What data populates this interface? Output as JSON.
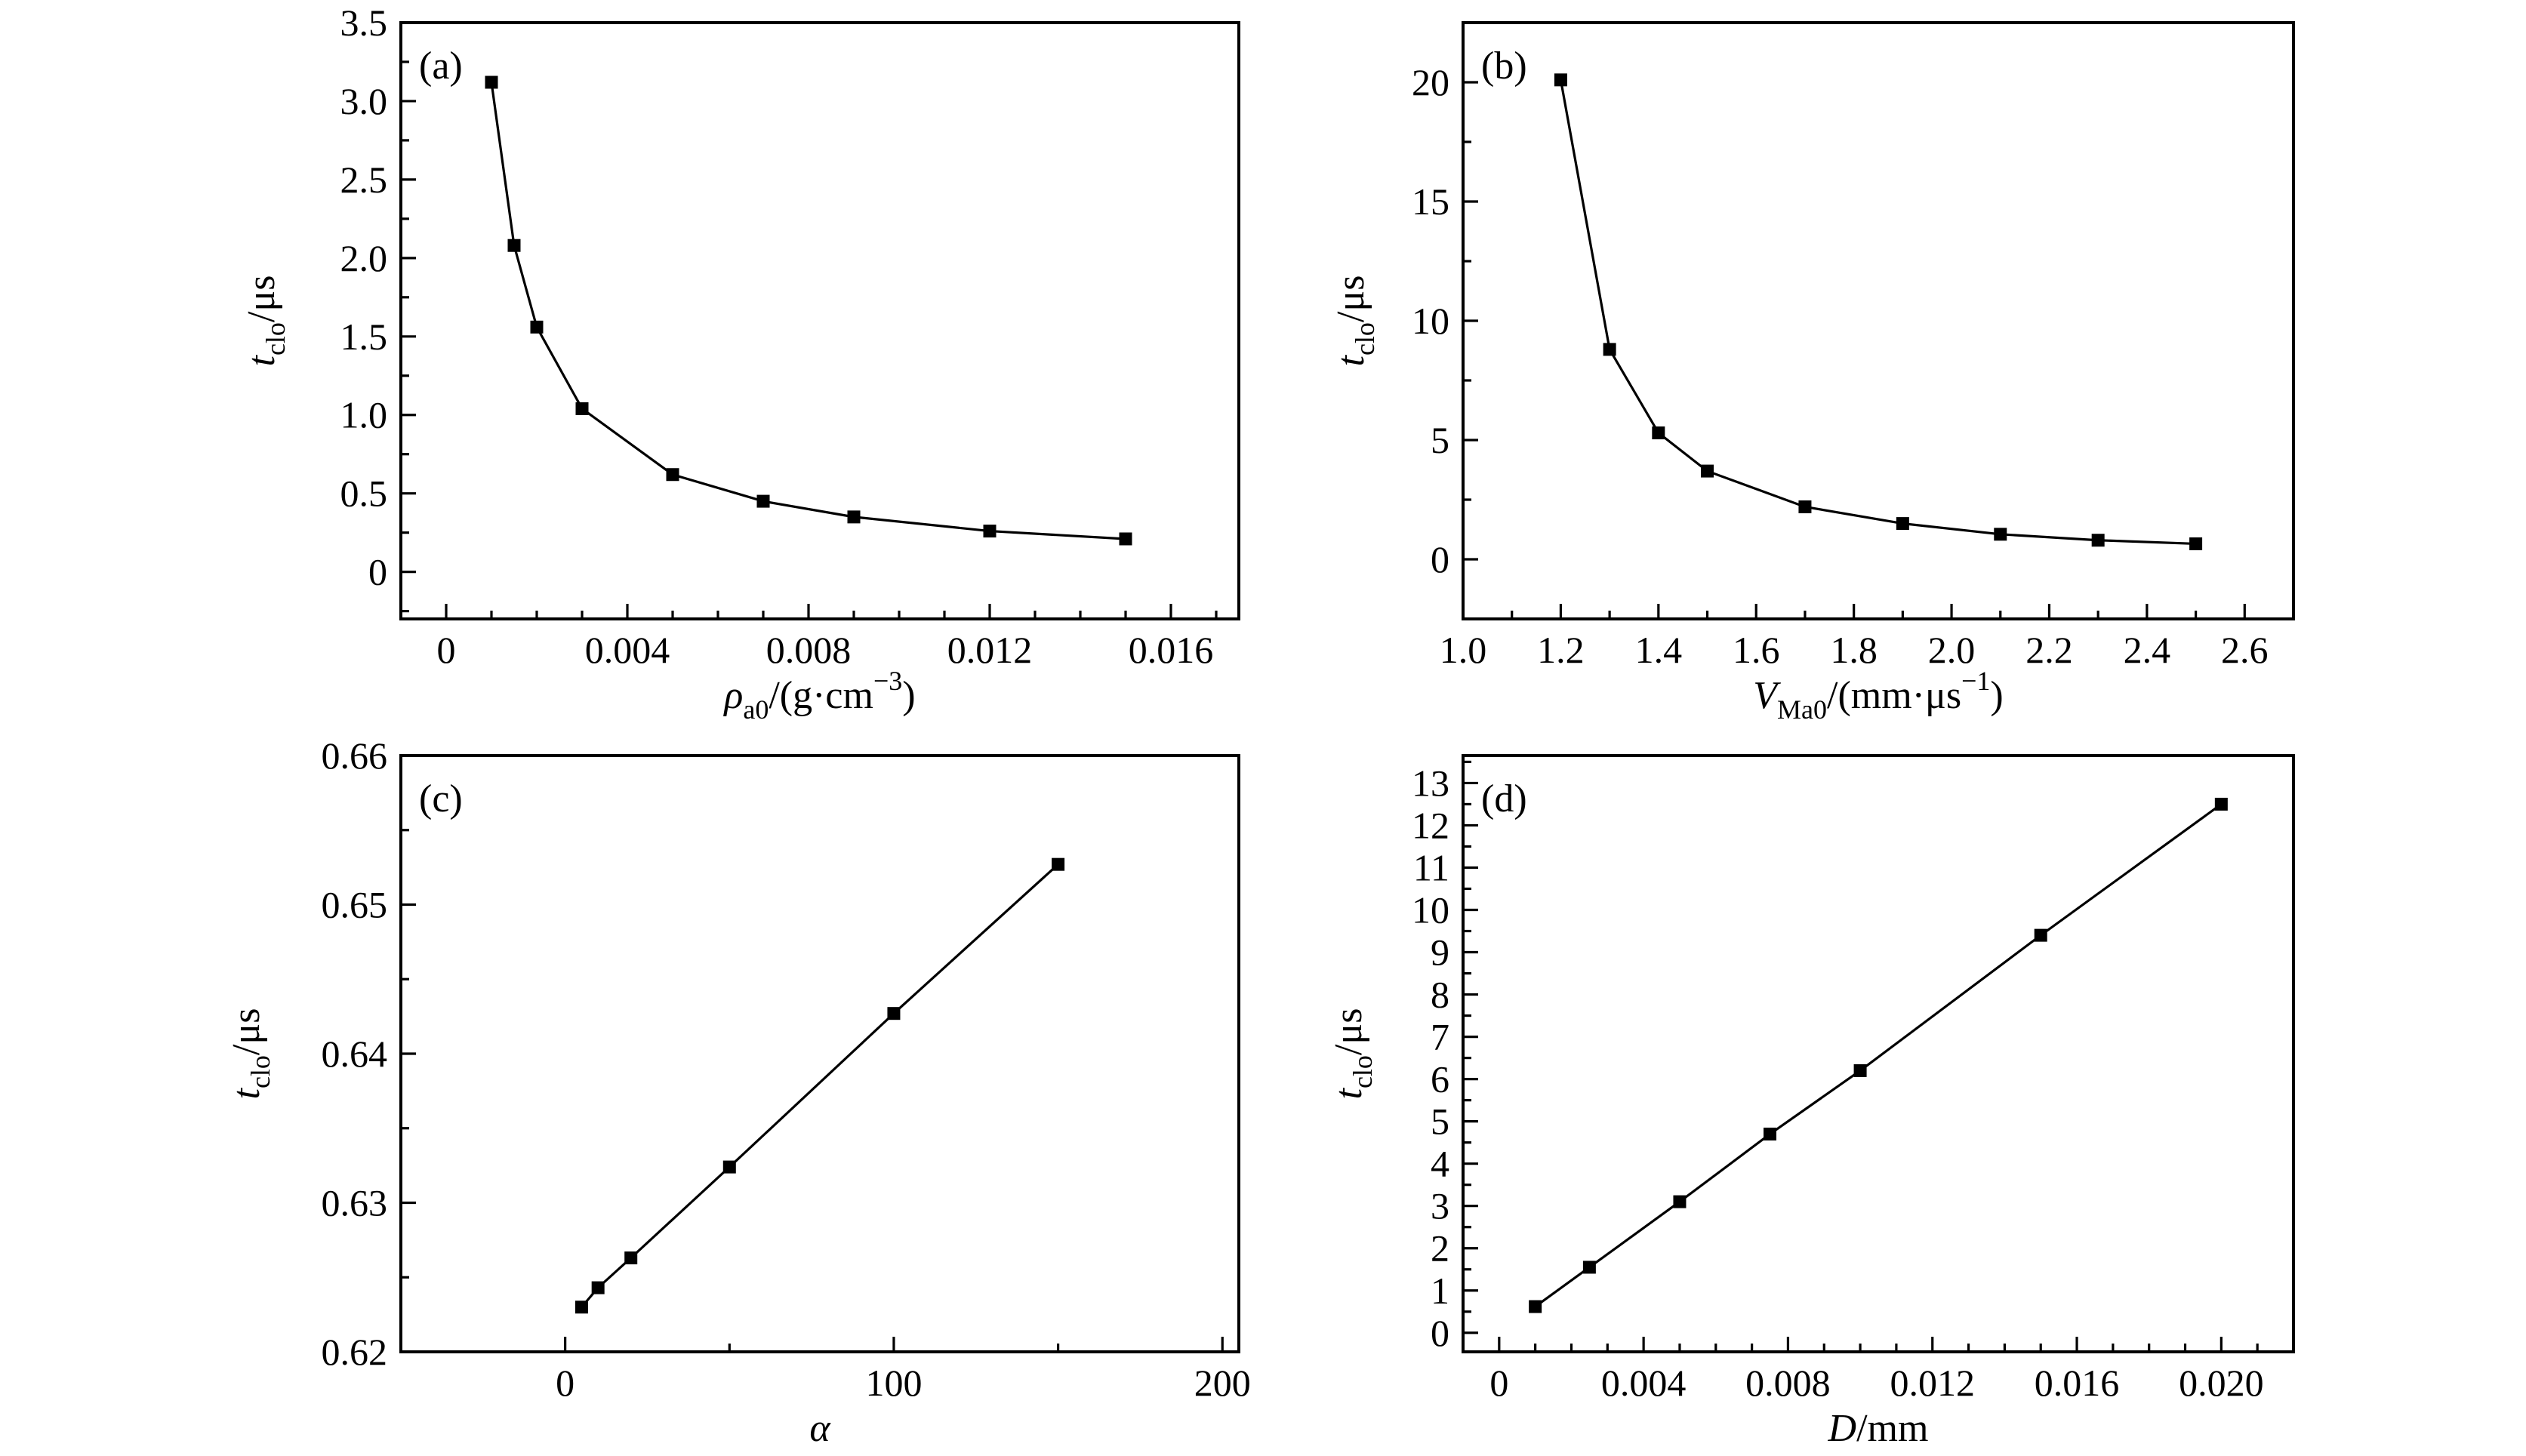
{
  "figure": {
    "background_color": "#ffffff",
    "ink_color": "#000000",
    "marker": "filled-square",
    "description": "Four-panel line figure of closure time t_clo versus four parameters"
  },
  "chart_data": [
    {
      "id": "a",
      "panel_label": "(a)",
      "type": "line",
      "xlabel_parts": [
        {
          "t": "ρ",
          "style": "italic"
        },
        {
          "t": "a0",
          "style": "sub"
        },
        {
          "t": "/(g·cm",
          "style": "normal"
        },
        {
          "t": "−3",
          "style": "sup"
        },
        {
          "t": ")",
          "style": "normal"
        }
      ],
      "ylabel_parts": [
        {
          "t": "t",
          "style": "italic"
        },
        {
          "t": "clo",
          "style": "sub"
        },
        {
          "t": "/μs",
          "style": "normal"
        }
      ],
      "xlim": [
        -0.001,
        0.0175
      ],
      "ylim": [
        -0.3,
        3.5
      ],
      "xticks": [
        {
          "v": 0,
          "l": "0"
        },
        {
          "v": 0.004,
          "l": "0.004"
        },
        {
          "v": 0.008,
          "l": "0.008"
        },
        {
          "v": 0.012,
          "l": "0.012"
        },
        {
          "v": 0.016,
          "l": "0.016"
        }
      ],
      "xminor": [
        0.001,
        0.002,
        0.003,
        0.005,
        0.006,
        0.007,
        0.009,
        0.01,
        0.011,
        0.013,
        0.014,
        0.015,
        0.017
      ],
      "yticks": [
        {
          "v": 0,
          "l": "0"
        },
        {
          "v": 0.5,
          "l": "0.5"
        },
        {
          "v": 1.0,
          "l": "1.0"
        },
        {
          "v": 1.5,
          "l": "1.5"
        },
        {
          "v": 2.0,
          "l": "2.0"
        },
        {
          "v": 2.5,
          "l": "2.5"
        },
        {
          "v": 3.0,
          "l": "3.0"
        },
        {
          "v": 3.5,
          "l": "3.5"
        }
      ],
      "yminor": [
        -0.25,
        0.25,
        0.75,
        1.25,
        1.75,
        2.25,
        2.75,
        3.25
      ],
      "x": [
        0.001,
        0.0015,
        0.002,
        0.003,
        0.005,
        0.007,
        0.009,
        0.012,
        0.015
      ],
      "y": [
        3.12,
        2.08,
        1.56,
        1.04,
        0.62,
        0.45,
        0.35,
        0.26,
        0.21
      ]
    },
    {
      "id": "b",
      "panel_label": "(b)",
      "type": "line",
      "xlabel_parts": [
        {
          "t": "V",
          "style": "italic"
        },
        {
          "t": "Ma0",
          "style": "sub"
        },
        {
          "t": "/(mm·μs",
          "style": "normal"
        },
        {
          "t": "−1",
          "style": "sup"
        },
        {
          "t": ")",
          "style": "normal"
        }
      ],
      "ylabel_parts": [
        {
          "t": "t",
          "style": "italic"
        },
        {
          "t": "clo",
          "style": "sub"
        },
        {
          "t": "/μs",
          "style": "normal"
        }
      ],
      "xlim": [
        1.0,
        2.7
      ],
      "ylim": [
        -2.5,
        22.5
      ],
      "xticks": [
        {
          "v": 1.0,
          "l": "1.0"
        },
        {
          "v": 1.2,
          "l": "1.2"
        },
        {
          "v": 1.4,
          "l": "1.4"
        },
        {
          "v": 1.6,
          "l": "1.6"
        },
        {
          "v": 1.8,
          "l": "1.8"
        },
        {
          "v": 2.0,
          "l": "2.0"
        },
        {
          "v": 2.2,
          "l": "2.2"
        },
        {
          "v": 2.4,
          "l": "2.4"
        },
        {
          "v": 2.6,
          "l": "2.6"
        }
      ],
      "xminor": [
        1.1,
        1.3,
        1.5,
        1.7,
        1.9,
        2.1,
        2.3,
        2.5
      ],
      "yticks": [
        {
          "v": 0,
          "l": "0"
        },
        {
          "v": 5,
          "l": "5"
        },
        {
          "v": 10,
          "l": "10"
        },
        {
          "v": 15,
          "l": "15"
        },
        {
          "v": 20,
          "l": "20"
        }
      ],
      "yminor": [
        2.5,
        7.5,
        12.5,
        17.5
      ],
      "x": [
        1.2,
        1.3,
        1.4,
        1.5,
        1.7,
        1.9,
        2.1,
        2.3,
        2.5
      ],
      "y": [
        20.1,
        8.8,
        5.3,
        3.7,
        2.2,
        1.5,
        1.05,
        0.8,
        0.65
      ]
    },
    {
      "id": "c",
      "panel_label": "(c)",
      "type": "line",
      "xlabel_parts": [
        {
          "t": "α",
          "style": "italic"
        }
      ],
      "ylabel_parts": [
        {
          "t": "t",
          "style": "italic"
        },
        {
          "t": "clo",
          "style": "sub"
        },
        {
          "t": "/μs",
          "style": "normal"
        }
      ],
      "xlim": [
        -50,
        205
      ],
      "ylim": [
        0.62,
        0.66
      ],
      "xticks": [
        {
          "v": 0,
          "l": "0"
        },
        {
          "v": 100,
          "l": "100"
        },
        {
          "v": 200,
          "l": "200"
        }
      ],
      "xminor": [
        50,
        150
      ],
      "yticks": [
        {
          "v": 0.62,
          "l": "0.62"
        },
        {
          "v": 0.63,
          "l": "0.63"
        },
        {
          "v": 0.64,
          "l": "0.64"
        },
        {
          "v": 0.65,
          "l": "0.65"
        },
        {
          "v": 0.66,
          "l": "0.66"
        }
      ],
      "yminor": [
        0.625,
        0.635,
        0.645,
        0.655
      ],
      "x": [
        5,
        10,
        20,
        50,
        100,
        150
      ],
      "y": [
        0.623,
        0.6243,
        0.6263,
        0.6324,
        0.6427,
        0.6527
      ]
    },
    {
      "id": "d",
      "panel_label": "(d)",
      "type": "line",
      "xlabel_parts": [
        {
          "t": "D",
          "style": "italic"
        },
        {
          "t": "/mm",
          "style": "normal"
        }
      ],
      "ylabel_parts": [
        {
          "t": "t",
          "style": "italic"
        },
        {
          "t": "clo",
          "style": "sub"
        },
        {
          "t": "/μs",
          "style": "normal"
        }
      ],
      "xlim": [
        -0.001,
        0.022
      ],
      "ylim": [
        -0.45,
        13.65
      ],
      "xticks": [
        {
          "v": 0,
          "l": "0"
        },
        {
          "v": 0.004,
          "l": "0.004"
        },
        {
          "v": 0.008,
          "l": "0.008"
        },
        {
          "v": 0.012,
          "l": "0.012"
        },
        {
          "v": 0.016,
          "l": "0.016"
        },
        {
          "v": 0.02,
          "l": "0.020"
        }
      ],
      "xminor": [
        0.001,
        0.002,
        0.003,
        0.005,
        0.006,
        0.007,
        0.009,
        0.01,
        0.011,
        0.013,
        0.014,
        0.015,
        0.017,
        0.018,
        0.019,
        0.021
      ],
      "yticks": [
        {
          "v": 0,
          "l": "0"
        },
        {
          "v": 1,
          "l": "1"
        },
        {
          "v": 2,
          "l": "2"
        },
        {
          "v": 3,
          "l": "3"
        },
        {
          "v": 4,
          "l": "4"
        },
        {
          "v": 5,
          "l": "5"
        },
        {
          "v": 6,
          "l": "6"
        },
        {
          "v": 7,
          "l": "7"
        },
        {
          "v": 8,
          "l": "8"
        },
        {
          "v": 9,
          "l": "9"
        },
        {
          "v": 10,
          "l": "10"
        },
        {
          "v": 11,
          "l": "11"
        },
        {
          "v": 12,
          "l": "12"
        },
        {
          "v": 13,
          "l": "13"
        }
      ],
      "yminor": [
        0.5,
        1.5,
        2.5,
        3.5,
        4.5,
        5.5,
        6.5,
        7.5,
        8.5,
        9.5,
        10.5,
        11.5,
        12.5,
        13.5
      ],
      "x": [
        0.001,
        0.0025,
        0.005,
        0.0075,
        0.01,
        0.015,
        0.02
      ],
      "y": [
        0.62,
        1.55,
        3.1,
        4.7,
        6.2,
        9.4,
        12.5
      ]
    }
  ]
}
